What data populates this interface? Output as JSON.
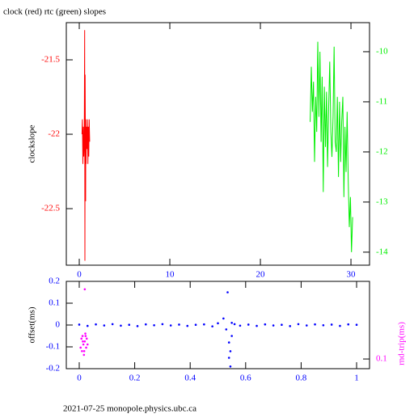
{
  "chart_data": [
    {
      "type": "line",
      "title": "clock (red) rtc (green) slopes",
      "ylabel": "clockslope",
      "xlim": [
        -1.43,
        32.05
      ],
      "xticks": [
        0,
        10,
        20,
        30
      ],
      "xtick_color": "#0000ff",
      "ylim": [
        -22.88,
        -21.25
      ],
      "yticks": [
        -22.5,
        -22,
        -21.5
      ],
      "y2lim": [
        -14.26,
        -9.42
      ],
      "y2ticks": [
        -14,
        -13,
        -12,
        -11,
        -10
      ],
      "series": [
        {
          "name": "clock",
          "color": "#ff0000",
          "x": [
            0.3,
            0.35,
            0.4,
            0.45,
            0.5,
            0.55,
            0.6,
            0.62,
            0.65,
            0.7,
            0.72,
            0.75,
            0.8,
            0.85,
            0.9,
            0.95,
            1.0,
            1.05,
            1.1,
            1.15
          ],
          "values": [
            -22.0,
            -21.9,
            -22.2,
            -21.95,
            -22.15,
            -22.05,
            -21.3,
            -22.85,
            -21.6,
            -22.45,
            -21.9,
            -22.2,
            -21.95,
            -22.1,
            -21.9,
            -22.2,
            -21.95,
            -22.15,
            -21.9,
            -22.05
          ]
        },
        {
          "name": "rtc",
          "color": "#00ee00",
          "axis": "y2",
          "x": [
            25.5,
            25.62,
            25.74,
            25.86,
            25.98,
            26.1,
            26.22,
            26.34,
            26.46,
            26.58,
            26.7,
            26.82,
            26.94,
            27.06,
            27.18,
            27.3,
            27.42,
            27.54,
            27.66,
            27.78,
            27.9,
            28.02,
            28.14,
            28.26,
            28.38,
            28.5,
            28.62,
            28.74,
            28.86,
            28.98,
            29.1,
            29.22,
            29.34,
            29.46,
            29.58,
            29.7,
            29.82,
            29.94,
            30.06,
            30.18
          ],
          "values": [
            -11.4,
            -10.3,
            -11.2,
            -10.6,
            -12.2,
            -10.9,
            -11.6,
            -9.8,
            -11.3,
            -10.0,
            -11.8,
            -10.5,
            -12.8,
            -10.7,
            -11.9,
            -10.8,
            -12.3,
            -11.1,
            -10.2,
            -11.6,
            -12.1,
            -11.3,
            -9.9,
            -11.8,
            -12.0,
            -10.9,
            -12.5,
            -11.0,
            -12.2,
            -11.4,
            -10.9,
            -12.9,
            -11.5,
            -12.4,
            -11.2,
            -12.6,
            -13.5,
            -12.9,
            -14.0,
            -13.3
          ]
        }
      ]
    },
    {
      "type": "scatter",
      "ylabel": "offset(ms)",
      "y2label": "rnd-trip(ms)",
      "xlim": [
        -0.0466,
        1.0466
      ],
      "xticks": [
        0,
        0.2,
        0.4,
        0.6,
        0.8,
        1
      ],
      "xtick_color": "#0000ff",
      "ylim": [
        -0.2,
        0.2
      ],
      "yticks": [
        -0.2,
        -0.1,
        0,
        0.1,
        0.2
      ],
      "y2lim": [
        0.08,
        0.6
      ],
      "y2ticks": [
        0.1
      ],
      "y2log": true,
      "series": [
        {
          "name": "offset",
          "color": "#0000ff",
          "x": [
            0,
            0.03,
            0.06,
            0.09,
            0.12,
            0.15,
            0.18,
            0.21,
            0.24,
            0.27,
            0.3,
            0.33,
            0.36,
            0.39,
            0.42,
            0.45,
            0.48,
            0.5,
            0.52,
            0.53,
            0.535,
            0.54,
            0.54,
            0.545,
            0.545,
            0.55,
            0.55,
            0.56,
            0.58,
            0.61,
            0.64,
            0.67,
            0.7,
            0.73,
            0.76,
            0.79,
            0.82,
            0.85,
            0.88,
            0.91,
            0.94,
            0.97,
            1.0
          ],
          "values": [
            0.002,
            -0.004,
            0.003,
            -0.002,
            0.004,
            -0.003,
            0.001,
            -0.005,
            0.003,
            -0.001,
            0.004,
            -0.002,
            0.002,
            -0.004,
            0.001,
            0.003,
            -0.006,
            0.008,
            0.03,
            -0.02,
            0.15,
            -0.08,
            -0.15,
            -0.12,
            -0.19,
            -0.05,
            0.01,
            0.004,
            -0.003,
            0.002,
            -0.004,
            0.003,
            -0.002,
            0.001,
            -0.005,
            0.004,
            -0.002,
            0.003,
            -0.001,
            0.002,
            -0.004,
            0.003,
            0.001
          ]
        },
        {
          "name": "rnd-trip",
          "color": "#ff00ff",
          "axis": "y2",
          "x": [
            0.005,
            0.008,
            0.01,
            0.012,
            0.015,
            0.017,
            0.02,
            0.022,
            0.025,
            0.027,
            0.03,
            0.018,
            0.013,
            0.023,
            0.02
          ],
          "values": [
            0.13,
            0.16,
            0.12,
            0.17,
            0.14,
            0.11,
            0.15,
            0.18,
            0.13,
            0.16,
            0.14,
            0.12,
            0.15,
            0.17,
            0.5
          ]
        }
      ]
    }
  ],
  "footer": "2021-07-25 monopole.physics.ubc.ca"
}
